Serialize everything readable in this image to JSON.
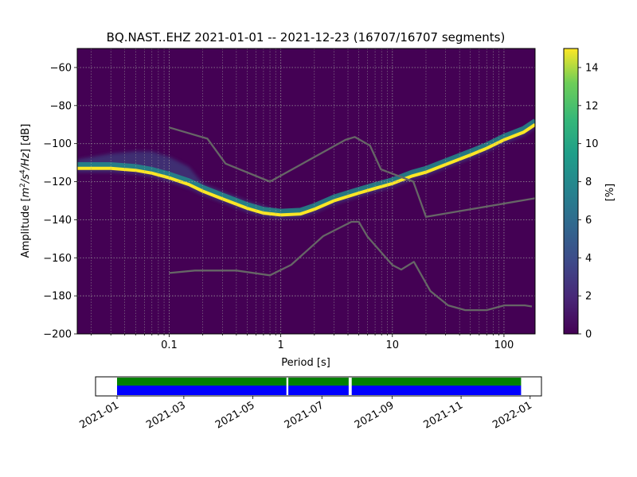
{
  "chart_data": [
    {
      "type": "heatmap",
      "title": "BQ.NAST..EHZ   2021-01-01 -- 2021-12-23  (16707/16707 segments)",
      "xlabel": "Period [s]",
      "ylabel_prefix": "Amplitude [",
      "ylabel_math": {
        "m": "m",
        "m_exp": "2",
        "slash": "/s",
        "s_exp": "4",
        "rest": "/Hz"
      },
      "ylabel_suffix": "] [dB]",
      "x_scale": "log",
      "xlim": [
        0.015,
        190
      ],
      "ylim": [
        -200,
        -50
      ],
      "x_ticks": [
        0.1,
        1,
        10,
        100
      ],
      "x_tick_labels": [
        "0.1",
        "1",
        "10",
        "100"
      ],
      "y_ticks": [
        -60,
        -80,
        -100,
        -120,
        -140,
        -160,
        -180,
        -200
      ],
      "y_tick_labels": [
        "−60",
        "−80",
        "−100",
        "−120",
        "−140",
        "−160",
        "−180",
        "−200"
      ],
      "grid": true,
      "background_color": "#440154",
      "colormap": "viridis",
      "colorbar": {
        "label": "[%]",
        "range": [
          0,
          15
        ],
        "ticks": [
          0,
          2,
          4,
          6,
          8,
          10,
          12,
          14
        ],
        "tick_labels": [
          "0",
          "2",
          "4",
          "6",
          "8",
          "10",
          "12",
          "14"
        ]
      },
      "psd_mode_curve": {
        "period": [
          0.015,
          0.02,
          0.03,
          0.05,
          0.07,
          0.1,
          0.15,
          0.2,
          0.3,
          0.5,
          0.7,
          1.0,
          1.5,
          2.0,
          3.0,
          5.0,
          7.0,
          10.0,
          15.0,
          20.0,
          30.0,
          50.0,
          70.0,
          100.0,
          150.0,
          190.0
        ],
        "amplitude_db": [
          -113,
          -113,
          -113,
          -114,
          -115.5,
          -118,
          -121.5,
          -125,
          -129,
          -134,
          -136.5,
          -137.5,
          -137,
          -134.5,
          -130,
          -126,
          -123.5,
          -121,
          -117,
          -115,
          -111,
          -106,
          -102.5,
          -98,
          -94,
          -90
        ]
      },
      "noise_models": [
        {
          "name": "high-noise-model",
          "period": [
            0.1,
            0.22,
            0.32,
            0.8,
            3.8,
            4.6,
            6.3,
            7.9,
            15.4,
            20.0,
            354.8
          ],
          "amplitude_db": [
            -91.5,
            -97.4,
            -110.5,
            -120.0,
            -98.0,
            -96.5,
            -101.0,
            -113.5,
            -120.0,
            -138.5,
            -126.0
          ]
        },
        {
          "name": "low-noise-model",
          "period": [
            0.1,
            0.17,
            0.4,
            0.8,
            1.24,
            2.4,
            4.3,
            5.0,
            6.0,
            10.0,
            12.0,
            15.6,
            21.9,
            31.6,
            45.0,
            70.0,
            101.0,
            154.0,
            178.0
          ],
          "amplitude_db": [
            -168.0,
            -166.7,
            -166.7,
            -169.2,
            -163.7,
            -148.6,
            -141.1,
            -141.1,
            -149.0,
            -163.8,
            -166.2,
            -162.1,
            -177.5,
            -185.0,
            -187.5,
            -187.5,
            -185.0,
            -185.0,
            -185.6
          ]
        }
      ],
      "noise_model_color": "#666666"
    },
    {
      "type": "timeline",
      "x_tick_labels": [
        "2021-01",
        "2021-03",
        "2021-05",
        "2021-07",
        "2021-09",
        "2021-11",
        "2022-01"
      ],
      "x_tick_dates": [
        "2021-01-01",
        "2021-03-01",
        "2021-05-01",
        "2021-07-01",
        "2021-09-01",
        "2021-11-01",
        "2022-01-01"
      ],
      "xlim": [
        "2020-12-13",
        "2022-01-11"
      ],
      "data_start": "2021-01-01",
      "data_end": "2021-12-23",
      "gaps": [
        "2021-05-31",
        "2021-07-25",
        "2021-07-26"
      ],
      "top_band_color": "#008000",
      "bottom_band_color": "#0000ff"
    }
  ]
}
